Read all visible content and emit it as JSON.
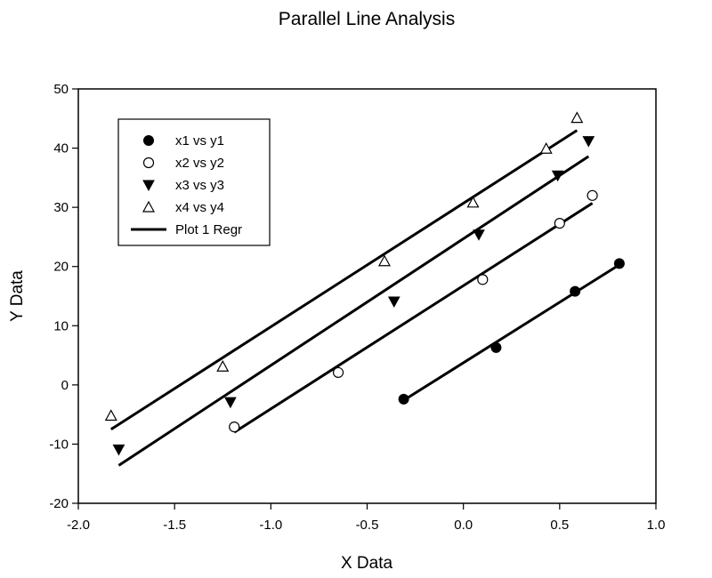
{
  "chart_data": {
    "type": "scatter",
    "title": "Parallel Line Analysis",
    "xlabel": "X Data",
    "ylabel": "Y Data",
    "xlim": [
      -2.0,
      1.0
    ],
    "ylim": [
      -20,
      50
    ],
    "xticks": [
      "-2.0",
      "-1.5",
      "-1.0",
      "-0.5",
      "0.0",
      "0.5",
      "1.0"
    ],
    "yticks": [
      "-20",
      "-10",
      "0",
      "10",
      "20",
      "30",
      "40",
      "50"
    ],
    "grid": false,
    "legend_position": "top-left",
    "series": [
      {
        "name": "x1 vs y1",
        "marker": "filled-circle",
        "points": [
          [
            -0.31,
            -2.4
          ],
          [
            0.17,
            6.3
          ],
          [
            0.58,
            15.8
          ],
          [
            0.81,
            20.5
          ]
        ],
        "fit": [
          [
            -0.31,
            -2.6
          ],
          [
            0.81,
            20.3
          ]
        ]
      },
      {
        "name": "x2 vs y2",
        "marker": "open-circle",
        "points": [
          [
            -1.19,
            -7.1
          ],
          [
            -0.65,
            2.1
          ],
          [
            0.1,
            17.8
          ],
          [
            0.5,
            27.3
          ],
          [
            0.67,
            32.0
          ]
        ],
        "fit": [
          [
            -1.19,
            -8.0
          ],
          [
            0.67,
            30.7
          ]
        ]
      },
      {
        "name": "x3 vs y3",
        "marker": "filled-triangle-down",
        "points": [
          [
            -1.79,
            -10.9
          ],
          [
            -1.21,
            -2.9
          ],
          [
            -0.36,
            14.1
          ],
          [
            0.08,
            25.4
          ],
          [
            0.49,
            35.4
          ],
          [
            0.65,
            41.2
          ]
        ],
        "fit": [
          [
            -1.79,
            -13.6
          ],
          [
            0.65,
            38.6
          ]
        ]
      },
      {
        "name": "x4 vs y4",
        "marker": "open-triangle-up",
        "points": [
          [
            -1.83,
            -5.2
          ],
          [
            -1.25,
            3.1
          ],
          [
            -0.41,
            20.9
          ],
          [
            0.05,
            30.8
          ],
          [
            0.43,
            39.9
          ],
          [
            0.59,
            45.1
          ]
        ],
        "fit": [
          [
            -1.83,
            -7.5
          ],
          [
            0.59,
            43.0
          ]
        ]
      }
    ],
    "regression_label": "Plot 1 Regr"
  }
}
